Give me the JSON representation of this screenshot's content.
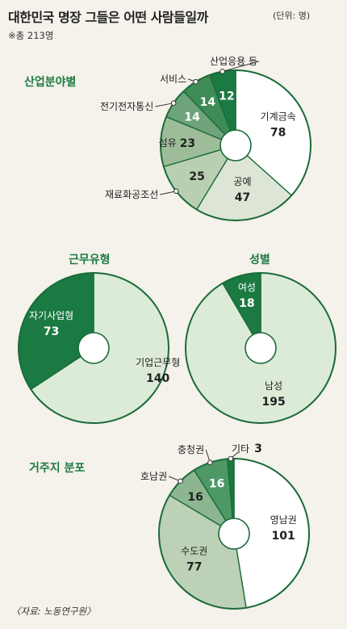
{
  "header": {
    "title": "대한민국 명장 그들은 어떤 사람들일까",
    "unit": "(단위: 명)",
    "note": "※총 213명"
  },
  "source": "〈자료: 노동연구원〉",
  "chart_data": [
    {
      "type": "pie",
      "title": "산업분야별",
      "slices": [
        {
          "label": "기계금속",
          "value": 78,
          "color": "#ffffff"
        },
        {
          "label": "공예",
          "value": 47,
          "color": "#dde6d6"
        },
        {
          "label": "재료화공조선",
          "value": 25,
          "color": "#b9cfb2"
        },
        {
          "label": "섬유",
          "value": 23,
          "color": "#9dbd98"
        },
        {
          "label": "전기전자통신",
          "value": 14,
          "color": "#6fa47a"
        },
        {
          "label": "서비스",
          "value": 14,
          "color": "#3f8c56"
        },
        {
          "label": "산업응용 등",
          "value": 12,
          "color": "#1b7a42"
        }
      ]
    },
    {
      "type": "pie",
      "title": "근무유형",
      "slices": [
        {
          "label": "기업근무형",
          "value": 140,
          "color": "#dcebd8"
        },
        {
          "label": "자기사업형",
          "value": 73,
          "color": "#1b7a42"
        }
      ]
    },
    {
      "type": "pie",
      "title": "성별",
      "slices": [
        {
          "label": "남성",
          "value": 195,
          "color": "#dcebd8"
        },
        {
          "label": "여성",
          "value": 18,
          "color": "#1b7a42"
        }
      ]
    },
    {
      "type": "pie",
      "title": "거주지 분포",
      "slices": [
        {
          "label": "영남권",
          "value": 101,
          "color": "#ffffff"
        },
        {
          "label": "수도권",
          "value": 77,
          "color": "#bdd1b6"
        },
        {
          "label": "호남권",
          "value": 16,
          "color": "#8db690"
        },
        {
          "label": "충청권",
          "value": 16,
          "color": "#4e9866"
        },
        {
          "label": "기타",
          "value": 3,
          "color": "#1b7a42"
        }
      ]
    }
  ]
}
